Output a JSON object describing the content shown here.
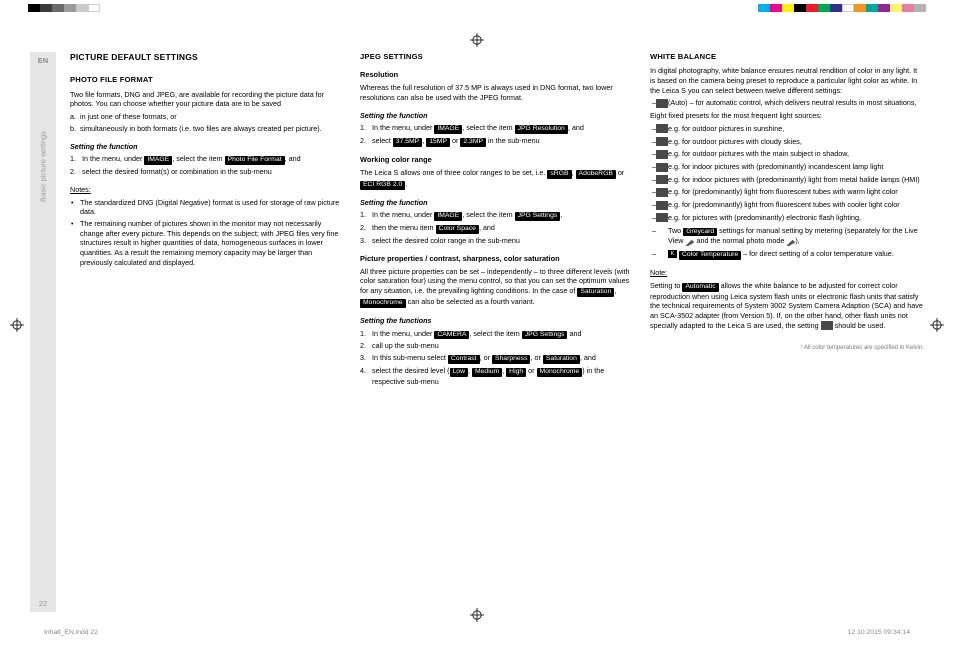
{
  "colorbar_left": [
    "#000000",
    "#3a3a3a",
    "#6a6a6a",
    "#9a9a9a",
    "#cacaca",
    "#ffffff"
  ],
  "colorbar_right": [
    "#00aeef",
    "#ec008c",
    "#fff200",
    "#000000",
    "#ed1c24",
    "#00a651",
    "#2e3192",
    "#ffffff",
    "#f7941d",
    "#00a99d",
    "#92278f",
    "#fef568",
    "#ec7aa8",
    "#b3b3b3"
  ],
  "gutter": {
    "en": "EN",
    "side_label": "Basic picture settings",
    "page_num": "22"
  },
  "footer": {
    "left": "Inhalt_EN.indd   22",
    "right": "12.10.2015   09:34:14"
  },
  "col1": {
    "h1": "PICTURE DEFAULT SETTINGS",
    "h2a": "PHOTO FILE FORMAT",
    "p1": "Two file formats, DNG and JPEG, are available for recording the picture data for photos. You can choose whether your picture data are to be saved",
    "la": "in just one of these formats, or",
    "lb": "simultaneously in both formats (i.e. two files are always created per picture).",
    "setfn": "Setting the function",
    "s1a": "In the menu, under ",
    "s1b": ", select the item ",
    "s1c": ", and",
    "s2": "select the desired format(s) or combination in the sub-menu",
    "tImage": "IMAGE",
    "tPFF": "Photo File Format",
    "notes": "Notes:",
    "n1": "The standardized DNG (Digital Negative) format is used for storage of raw picture data.",
    "n2": "The remaining number of pictures shown in the monitor may not necessarily change after every picture. This depends on the subject; with JPEG files very fine structures result in higher quantities of data, homogeneous surfaces in lower quantities. As a result the remaining memory capacity may be larger than previously calculated and displayed."
  },
  "col2": {
    "h2": "JPEG SETTINGS",
    "h3a": "Resolution",
    "p1": "Whereas the full resolution of 37.5 MP is always used in DNG format, two lower resolutions can also be used with the JPEG format.",
    "setfn": "Setting the function",
    "r1a": "In the menu, under ",
    "r1b": ", select the item ",
    "r1c": ", and",
    "r2a": "select ",
    "r2b": ", ",
    "r2c": " or ",
    "r2d": " in the sub-menu",
    "tImage": "IMAGE",
    "tJRes": "JPG Resolution",
    "t375": "37.5MP",
    "t15": "15MP",
    "t23": "2.3MP",
    "h3b": "Working color range",
    "p2a": "The Leica S allows one of three color ranges to be set, i.e. ",
    "tSRGB": "sRGB",
    "tAdobe": "AdobeRGB",
    "tECI": "ECI RGB 2.0",
    "p2b": " or ",
    "p2c": ".",
    "c1a": "In the menu, under ",
    "c1b": ", select the item ",
    "tJSet": "JPG Settings",
    "c1c": ",",
    "c2a": "then the menu item ",
    "tCSpace": "Color Space",
    "c2b": ", and",
    "c3": "select the desired color range in the sub-menu",
    "h3c": "Picture properties / contrast, sharpness, color saturation",
    "p3": "All three picture properties can be set – independently – to three different levels (with color saturation four) using the menu control, so that you can set the optimum values for any situation, i.e. the prevailing lighting conditions. In the case of ",
    "tSat": "Saturation",
    "p3b": ", ",
    "tMono": "Monochrome",
    "p3c": " can also be selected as a fourth variant.",
    "setfns": "Setting the functions",
    "d1a": "In the menu, under ",
    "tCam": "CAMERA",
    "d1b": ", select the item ",
    "d1c": " and",
    "d2": "call up the sub-menu",
    "d3a": "In this sub-menu select ",
    "tCon": "Contrast",
    "d3b": ", or ",
    "tSharp": "Sharpness",
    "d3c": ", or ",
    "d3d": ", and",
    "d4a": "select the desired level (",
    "tLow": "Low",
    "d4b": ", ",
    "tMed": "Medium",
    "d4c": ", ",
    "tHigh": "High",
    "d4d": " or ",
    "d4e": ") in the respective sub-menu"
  },
  "col3": {
    "h2": "WHITE BALANCE",
    "p1": "In digital photography, white balance ensures neutral rendition of color in any light. It is based on the camera being preset to reproduce a particular light color as white. In the Leica S you can select between twelve different settings:",
    "auto_a": " (Auto) – for automatic control, which delivers neutral results in most situations,",
    "p2": "Eight fixed presets for the most frequent light sources:",
    "li_sun": " e.g. for outdoor pictures in sunshine,",
    "li_cloud": " e.g. for outdoor pictures with cloudy skies,",
    "li_shadow": " e.g. for outdoor pictures with the main subject in shadow,",
    "li_incand": " e.g. for indoor pictures with (predominantly) incandescent lamp light",
    "li_hmi": " e.g. for indoor pictures with (predominantly) light from metal halide lamps (HMI)",
    "li_fluo_w": " e.g. for (predominantly) light from fluorescent tubes with warm light color",
    "li_fluo_c": " e.g. for (predominantly) light from fluorescent tubes with cooler light color",
    "li_flash": " e.g. for pictures with (predominantly) electronic flash lighting,",
    "li_grey_a": "Two ",
    "tGrey": "Greycard",
    "li_grey_b": " settings for manual setting by metering (separately for the Live View ",
    "li_grey_c": " and the normal photo mode ",
    "li_grey_d": "),",
    "li_ct_a": "",
    "tK": "K",
    "tCTemp": "Color Temperature",
    "li_ct_b": " – for direct setting of a color temperature value.",
    "note": "Note:",
    "np_a": "Setting to ",
    "tAuto": "Automatic",
    "np_b": " allows the white balance to be adjusted for correct color reproduction when using Leica system flash units or electronic flash units that satisfy the technical requirements of System 3002 System Camera Adaption (SCA) and have an SCA-3502 adapter (from Version 5). If, on the other hand, other flash units not specially adapted to the Leica S are used, the setting ",
    "np_c": " should be used.",
    "footnote": "¹ All color temperatures are specified in Kelvin."
  }
}
